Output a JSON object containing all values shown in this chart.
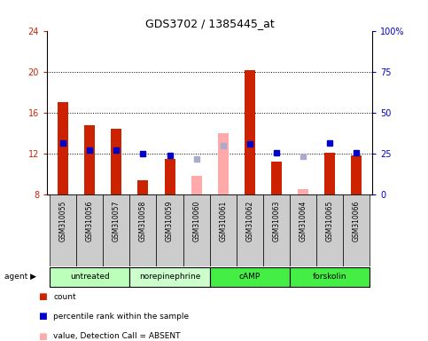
{
  "title": "GDS3702 / 1385445_at",
  "samples": [
    "GSM310055",
    "GSM310056",
    "GSM310057",
    "GSM310058",
    "GSM310059",
    "GSM310060",
    "GSM310061",
    "GSM310062",
    "GSM310063",
    "GSM310064",
    "GSM310065",
    "GSM310066"
  ],
  "agents": [
    {
      "label": "untreated",
      "color": "#bbffbb",
      "start": 0,
      "end": 3
    },
    {
      "label": "norepinephrine",
      "color": "#ccffcc",
      "start": 3,
      "end": 6
    },
    {
      "label": "cAMP",
      "color": "#44ee44",
      "start": 6,
      "end": 9
    },
    {
      "label": "forskolin",
      "color": "#44ee44",
      "start": 9,
      "end": 12
    }
  ],
  "count_values": [
    17.0,
    14.8,
    14.4,
    9.4,
    11.5,
    null,
    null,
    20.1,
    11.2,
    null,
    12.1,
    11.8
  ],
  "count_absent": [
    null,
    null,
    null,
    null,
    null,
    9.8,
    14.0,
    null,
    null,
    8.5,
    null,
    null
  ],
  "rank_values": [
    13.0,
    12.3,
    12.3,
    12.0,
    11.8,
    null,
    null,
    12.9,
    12.1,
    null,
    13.0,
    12.1
  ],
  "rank_absent": [
    null,
    null,
    null,
    null,
    null,
    11.5,
    12.8,
    null,
    null,
    11.7,
    null,
    null
  ],
  "ylim_left": [
    8,
    24
  ],
  "ylim_right": [
    0,
    100
  ],
  "yticks_left": [
    8,
    12,
    16,
    20,
    24
  ],
  "yticks_right": [
    0,
    25,
    50,
    75,
    100
  ],
  "ytick_labels_right": [
    "0",
    "25",
    "50",
    "75",
    "100%"
  ],
  "dotted_lines": [
    12,
    16,
    20
  ],
  "red_color": "#cc2200",
  "blue_color": "#0000cc",
  "pink_color": "#ffaaaa",
  "light_blue": "#aaaacc",
  "bar_width": 0.4,
  "marker_size": 4,
  "fig_width": 4.83,
  "fig_height": 3.84,
  "dpi": 100
}
